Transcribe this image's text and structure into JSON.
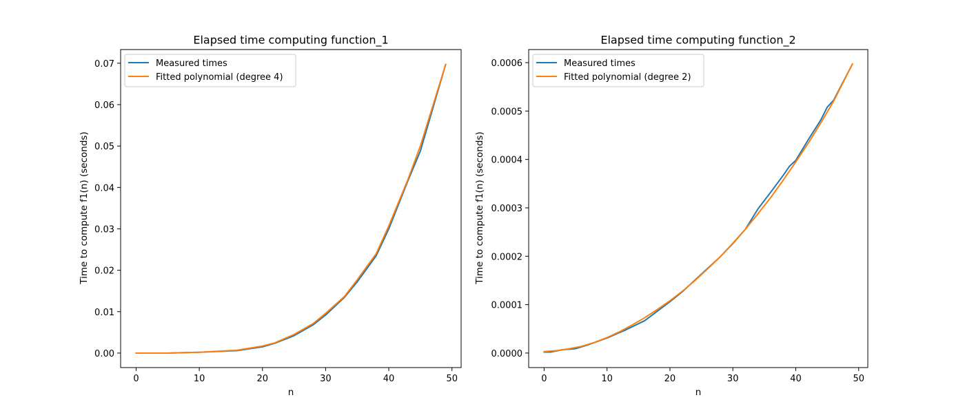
{
  "chart_data": [
    {
      "type": "line",
      "title": "Elapsed time computing function_1",
      "xlabel": "n",
      "ylabel": "Time to compute f1(n) (seconds)",
      "xlim": [
        -2.45,
        51.45
      ],
      "ylim": [
        -0.0035,
        0.0733
      ],
      "xticks": [
        0,
        10,
        20,
        30,
        40,
        50
      ],
      "xtick_labels": [
        "0",
        "10",
        "20",
        "30",
        "40",
        "50"
      ],
      "yticks": [
        0.0,
        0.01,
        0.02,
        0.03,
        0.04,
        0.05,
        0.06,
        0.07
      ],
      "ytick_labels": [
        "0.00",
        "0.01",
        "0.02",
        "0.03",
        "0.04",
        "0.05",
        "0.06",
        "0.07"
      ],
      "grid": false,
      "legend_position": "upper-left",
      "series": [
        {
          "name": "Measured times",
          "color": "#1f77b4",
          "x": [
            0,
            5,
            10,
            16,
            20,
            22,
            25,
            28,
            30,
            33,
            35,
            38,
            40,
            43,
            45,
            49
          ],
          "y": [
            0.0,
            0.0,
            0.0002,
            0.0006,
            0.0015,
            0.0024,
            0.0042,
            0.0068,
            0.0092,
            0.0135,
            0.0172,
            0.0235,
            0.03,
            0.0415,
            0.0488,
            0.0697
          ]
        },
        {
          "name": "Fitted polynomial (degree 4)",
          "color": "#ff7f0e",
          "x": [
            0,
            5,
            10,
            16,
            20,
            22,
            25,
            28,
            30,
            33,
            35,
            38,
            40,
            43,
            45,
            49
          ],
          "y": [
            0.0,
            0.0,
            0.0002,
            0.0007,
            0.0017,
            0.0025,
            0.0045,
            0.0071,
            0.0096,
            0.0137,
            0.0177,
            0.024,
            0.0307,
            0.0418,
            0.05,
            0.0697
          ]
        }
      ]
    },
    {
      "type": "line",
      "title": "Elapsed time computing function_2",
      "xlabel": "n",
      "ylabel": "Time to compute f1(n) (seconds)",
      "xlim": [
        -2.45,
        51.45
      ],
      "ylim": [
        -3e-05,
        0.000627
      ],
      "xticks": [
        0,
        10,
        20,
        30,
        40,
        50
      ],
      "xtick_labels": [
        "0",
        "10",
        "20",
        "30",
        "40",
        "50"
      ],
      "yticks": [
        0.0,
        0.0001,
        0.0002,
        0.0003,
        0.0004,
        0.0005,
        0.0006
      ],
      "ytick_labels": [
        "0.0000",
        "0.0001",
        "0.0002",
        "0.0003",
        "0.0004",
        "0.0005",
        "0.0006"
      ],
      "grid": false,
      "legend_position": "upper-left",
      "series": [
        {
          "name": "Measured times",
          "color": "#1f77b4",
          "x": [
            0,
            1,
            3,
            5,
            7,
            10,
            13,
            16,
            20,
            22,
            25,
            28,
            30,
            32,
            34,
            36,
            38,
            39,
            40,
            42,
            44,
            45,
            46,
            47,
            49
          ],
          "y": [
            2e-06,
            2e-06,
            7e-06,
            9e-06,
            1.7e-05,
            3.1e-05,
            4.8e-05,
            6.7e-05,
            0.000106,
            0.000127,
            0.000163,
            0.000199,
            0.000226,
            0.000256,
            0.000298,
            0.000332,
            0.000367,
            0.000386,
            0.000398,
            0.000441,
            0.000482,
            0.000508,
            0.000522,
            0.000547,
            0.000597
          ]
        },
        {
          "name": "Fitted polynomial (degree 2)",
          "color": "#ff7f0e",
          "x": [
            0,
            2,
            4,
            6,
            8,
            10,
            12,
            14,
            16,
            18,
            20,
            22,
            24,
            26,
            28,
            30,
            32,
            34,
            36,
            38,
            40,
            42,
            44,
            46,
            49
          ],
          "y": [
            3e-06,
            5e-06,
            9e-06,
            1.4e-05,
            2.2e-05,
            3.2e-05,
            4.4e-05,
            5.8e-05,
            7.3e-05,
            9e-05,
            0.000108,
            0.000128,
            0.00015,
            0.000174,
            0.000199,
            0.000227,
            0.000256,
            0.000288,
            0.000321,
            0.000357,
            0.000395,
            0.000434,
            0.000476,
            0.00052,
            0.000597
          ]
        }
      ]
    }
  ]
}
